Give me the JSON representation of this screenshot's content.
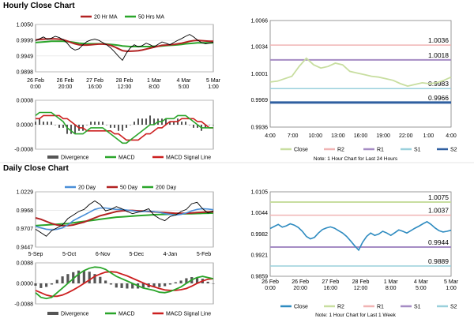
{
  "sections": {
    "hourly_title": "Hourly Close Chart",
    "daily_title": "Daily Close Chart"
  },
  "colors": {
    "close": "#2e8bc0",
    "close_right": "#c8dea0",
    "ma_short": "#b22222",
    "ma_long": "#2aa52a",
    "ma_mid": "#4a8fd8",
    "divergence": "#555555",
    "macd": "#2aa52a",
    "macd_signal": "#cc1f1f",
    "r2": "#f0b4b4",
    "r1": "#a58cc4",
    "s1": "#9ad0dc",
    "s2": "#2f5fa0",
    "grid": "#d9d9d9"
  },
  "chart_data": [
    {
      "id": "hourly_price",
      "type": "line",
      "legend": [
        "20 Hr MA",
        "50 Hrs MA"
      ],
      "y_ticks": [
        "1.0050",
        "0.9999",
        "0.9949",
        "0.9898"
      ],
      "ylim": [
        0.9898,
        1.005
      ],
      "x_ticks": [
        "26 Feb\n0:00",
        "26 Feb\n20:00",
        "27 Feb\n16:00",
        "28 Feb\n12:00",
        "1 Mar\n8:00",
        "4 Mar\n5:00",
        "5 Mar\n1:00"
      ],
      "series": [
        {
          "name": "Close",
          "values": [
            0.9998,
            1.0004,
            1.001,
            1.0002,
            1.0006,
            1.0012,
            1.0008,
            1.0001,
            0.999,
            0.9975,
            0.9968,
            0.9972,
            0.9985,
            0.9995,
            1.0,
            1.0003,
            0.9999,
            0.9992,
            0.9985,
            0.9975,
            0.9962,
            0.9948,
            0.9935,
            0.9958,
            0.9975,
            0.9985,
            0.9978,
            0.9982,
            0.999,
            0.9985,
            0.9978,
            0.9986,
            0.9994,
            0.999,
            0.9985,
            0.9992,
            0.9999,
            1.0005,
            1.0012,
            1.0018,
            1.001,
            1.0,
            0.9992,
            0.9988,
            0.999,
            0.9993
          ]
        },
        {
          "name": "20 Hr MA",
          "values": [
            1.0,
            1.0002,
            1.0003,
            1.0004,
            1.0004,
            1.0004,
            1.0003,
            1.0001,
            0.9997,
            0.9992,
            0.9988,
            0.9985,
            0.9984,
            0.9984,
            0.9985,
            0.9986,
            0.9987,
            0.9987,
            0.9986,
            0.9983,
            0.9978,
            0.9972,
            0.9966,
            0.9964,
            0.9964,
            0.9965,
            0.9966,
            0.9968,
            0.9971,
            0.9974,
            0.9977,
            0.998,
            0.9983,
            0.9984,
            0.9985,
            0.9986,
            0.9988,
            0.999,
            0.9993,
            0.9996,
            0.9998,
            0.9999,
            0.9998,
            0.9997,
            0.9996,
            0.9996
          ]
        },
        {
          "name": "50 Hrs MA",
          "values": [
            0.9992,
            0.9993,
            0.9994,
            0.9995,
            0.9996,
            0.9996,
            0.9996,
            0.9996,
            0.9995,
            0.9994,
            0.9992,
            0.999,
            0.9989,
            0.9988,
            0.9988,
            0.9988,
            0.9988,
            0.9988,
            0.9987,
            0.9986,
            0.9985,
            0.9983,
            0.9981,
            0.998,
            0.9979,
            0.9979,
            0.9979,
            0.9979,
            0.9979,
            0.9979,
            0.998,
            0.998,
            0.9981,
            0.9982,
            0.9983,
            0.9984,
            0.9985,
            0.9986,
            0.9988,
            0.9989,
            0.999,
            0.9991,
            0.9991,
            0.9991,
            0.9991,
            0.9991
          ]
        }
      ]
    },
    {
      "id": "hourly_macd",
      "type": "line",
      "legend": [
        "Divergence",
        "MACD",
        "MACD Signal Line"
      ],
      "y_ticks": [
        "0.0008",
        "0.0000",
        "-0.0008"
      ],
      "ylim": [
        -0.0008,
        0.0008
      ],
      "series": [
        {
          "name": "MACD",
          "values": [
            0.0003,
            0.0004,
            0.0004,
            0.0004,
            0.0004,
            0.0003,
            0.0002,
            0.0001,
            -0.0001,
            -0.0002,
            -0.0003,
            -0.0003,
            -0.0003,
            -0.0002,
            -0.0001,
            -0.0001,
            -0.0001,
            -0.0001,
            -0.0002,
            -0.0003,
            -0.0004,
            -0.0005,
            -0.0006,
            -0.0006,
            -0.0005,
            -0.0004,
            -0.0003,
            -0.0002,
            -0.0001,
            0.0,
            0.0,
            0.0001,
            0.0001,
            0.0002,
            0.0002,
            0.0002,
            0.0003,
            0.0003,
            0.0003,
            0.0002,
            0.0001,
            0.0,
            -0.0001,
            -0.0001,
            -0.0001,
            -0.0001
          ]
        },
        {
          "name": "MACD Signal Line",
          "values": [
            0.0002,
            0.0002,
            0.0003,
            0.0003,
            0.0003,
            0.0003,
            0.0003,
            0.0002,
            0.0002,
            0.0001,
            0.0,
            -0.0001,
            -0.0001,
            -0.0002,
            -0.0002,
            -0.0002,
            -0.0002,
            -0.0002,
            -0.0002,
            -0.0002,
            -0.0003,
            -0.0003,
            -0.0004,
            -0.0005,
            -0.0005,
            -0.0005,
            -0.0005,
            -0.0004,
            -0.0003,
            -0.0003,
            -0.0002,
            -0.0001,
            -0.0001,
            0.0,
            0.0001,
            0.0001,
            0.0001,
            0.0002,
            0.0002,
            0.0002,
            0.0002,
            0.0001,
            0.0001,
            0.0,
            -0.0001,
            -0.0001
          ]
        },
        {
          "name": "Divergence",
          "values": [
            0.0001,
            0.0002,
            0.0001,
            0.0001,
            0.0001,
            0.0,
            -0.0001,
            -0.0001,
            -0.0003,
            -0.0003,
            -0.0003,
            -0.0002,
            -0.0002,
            0.0,
            0.0001,
            0.0001,
            0.0001,
            0.0001,
            0.0,
            -0.0001,
            -0.0001,
            -0.0002,
            -0.0002,
            -0.0001,
            0.0,
            0.0001,
            0.0002,
            0.0002,
            0.0002,
            0.0003,
            0.0002,
            0.0002,
            0.0002,
            0.0002,
            0.0001,
            0.0001,
            0.0002,
            0.0001,
            0.0001,
            0.0,
            -0.0001,
            -0.0001,
            -0.0002,
            -0.0001,
            0.0,
            0.0
          ]
        }
      ]
    },
    {
      "id": "hourly_pivot",
      "type": "line",
      "y_ticks": [
        "1.0066",
        "1.0034",
        "1.0001",
        "0.9969",
        "0.9936"
      ],
      "ylim": [
        0.9936,
        1.0066
      ],
      "x_ticks": [
        "4:00",
        "7:00",
        "10:00",
        "13:00",
        "16:00",
        "19:00",
        "22:00",
        "1:00",
        "4:00"
      ],
      "legend": [
        "Close",
        "R2",
        "R1",
        "S1",
        "S2"
      ],
      "levels": [
        {
          "name": "R2",
          "value": 1.0036,
          "label": "1.0036"
        },
        {
          "name": "R1",
          "value": 1.0018,
          "label": "1.0018"
        },
        {
          "name": "S1",
          "value": 0.9983,
          "label": "0.9983"
        },
        {
          "name": "S2",
          "value": 0.9966,
          "label": "0.9966"
        }
      ],
      "series": [
        {
          "name": "Close",
          "values": [
            0.9991,
            0.9992,
            0.9995,
            0.9998,
            1.001,
            1.002,
            1.0012,
            1.0008,
            1.001,
            1.0014,
            1.0012,
            1.0004,
            1.0002,
            1.0,
            0.9998,
            0.9997,
            0.9995,
            0.9993,
            0.9989,
            0.9986,
            0.9988,
            0.999,
            0.9989,
            0.999,
            0.9993,
            0.9997
          ]
        }
      ],
      "note": "Note: 1 Hour Chart for Last 24 Hours"
    },
    {
      "id": "daily_price",
      "type": "line",
      "legend": [
        "20 Day",
        "50 Day",
        "200 Day"
      ],
      "y_ticks": [
        "1.0229",
        "0.9968",
        "0.9707",
        "0.9447"
      ],
      "ylim": [
        0.9447,
        1.0229
      ],
      "x_ticks": [
        "5-Sep",
        "5-Oct",
        "6-Nov",
        "5-Dec",
        "4-Jan",
        "5-Feb"
      ],
      "series": [
        {
          "name": "Close",
          "values": [
            0.97,
            0.965,
            0.96,
            0.968,
            0.972,
            0.976,
            0.985,
            0.99,
            0.995,
            0.998,
            1.005,
            1.01,
            1.005,
            0.996,
            0.998,
            1.002,
            0.999,
            0.995,
            0.992,
            0.994,
            0.996,
            0.999,
            0.99,
            0.985,
            0.982,
            0.988,
            0.99,
            0.995,
            0.998,
            1.006,
            1.008,
            0.999,
            0.993,
            0.996
          ]
        },
        {
          "name": "20 Day",
          "values": [
            0.974,
            0.972,
            0.97,
            0.969,
            0.97,
            0.972,
            0.976,
            0.982,
            0.986,
            0.99,
            0.994,
            0.998,
            1.0,
            1.0,
            0.999,
            0.998,
            0.998,
            0.997,
            0.996,
            0.995,
            0.995,
            0.9955,
            0.995,
            0.994,
            0.992,
            0.991,
            0.99,
            0.991,
            0.993,
            0.996,
            0.998,
            0.999,
            0.9985,
            0.9975
          ]
        },
        {
          "name": "50 Day",
          "values": [
            0.986,
            0.984,
            0.981,
            0.978,
            0.976,
            0.975,
            0.975,
            0.976,
            0.978,
            0.98,
            0.983,
            0.986,
            0.989,
            0.991,
            0.993,
            0.995,
            0.996,
            0.9965,
            0.9965,
            0.996,
            0.9955,
            0.995,
            0.9945,
            0.994,
            0.9935,
            0.993,
            0.9925,
            0.9925,
            0.9925,
            0.993,
            0.9935,
            0.994,
            0.9945,
            0.9945
          ]
        },
        {
          "name": "200 Day",
          "values": [
            0.975,
            0.9755,
            0.976,
            0.9765,
            0.977,
            0.9775,
            0.978,
            0.979,
            0.98,
            0.981,
            0.982,
            0.983,
            0.984,
            0.985,
            0.986,
            0.987,
            0.9875,
            0.988,
            0.9885,
            0.989,
            0.9895,
            0.99,
            0.9905,
            0.9908,
            0.991,
            0.9912,
            0.9914,
            0.9916,
            0.9918,
            0.992,
            0.9922,
            0.9924,
            0.9926,
            0.9928
          ]
        }
      ]
    },
    {
      "id": "daily_macd",
      "type": "line",
      "legend": [
        "Divergence",
        "MACD",
        "MACD Signal Line"
      ],
      "y_ticks": [
        "0.0088",
        "0.0000",
        "-0.0088"
      ],
      "ylim": [
        -0.0088,
        0.0088
      ],
      "series": [
        {
          "name": "MACD",
          "values": [
            -0.004,
            -0.006,
            -0.0065,
            -0.006,
            -0.004,
            -0.002,
            0.0,
            0.002,
            0.004,
            0.0055,
            0.0065,
            0.007,
            0.0068,
            0.006,
            0.0045,
            0.003,
            0.002,
            0.001,
            0.0,
            -0.001,
            -0.002,
            -0.0025,
            -0.003,
            -0.0038,
            -0.004,
            -0.0035,
            -0.0025,
            -0.0015,
            0.0,
            0.0015,
            0.0025,
            0.003,
            0.0025,
            0.002
          ]
        },
        {
          "name": "MACD Signal Line",
          "values": [
            -0.003,
            -0.004,
            -0.005,
            -0.0055,
            -0.0055,
            -0.005,
            -0.004,
            -0.0028,
            -0.0015,
            0.0,
            0.0015,
            0.003,
            0.004,
            0.0048,
            0.005,
            0.0048,
            0.004,
            0.0032,
            0.0022,
            0.0012,
            0.0002,
            -0.0008,
            -0.0015,
            -0.0022,
            -0.0028,
            -0.003,
            -0.003,
            -0.0027,
            -0.0022,
            -0.0012,
            0.0,
            0.001,
            0.0018,
            0.002
          ]
        },
        {
          "name": "Divergence",
          "values": [
            -0.001,
            -0.002,
            -0.0015,
            -0.0005,
            0.0015,
            0.003,
            0.004,
            0.0048,
            0.0055,
            0.0055,
            0.005,
            0.004,
            0.0028,
            0.0012,
            -0.0005,
            -0.0018,
            -0.002,
            -0.0022,
            -0.0022,
            -0.0022,
            -0.0022,
            -0.0017,
            -0.0015,
            -0.0016,
            -0.0012,
            -0.0005,
            0.0005,
            0.0012,
            0.0022,
            0.0027,
            0.0025,
            0.002,
            0.0007,
            0.0
          ]
        }
      ]
    },
    {
      "id": "daily_pivot",
      "type": "line",
      "y_ticks": [
        "1.0105",
        "1.0044",
        "0.9982",
        "0.9921",
        "0.9859"
      ],
      "ylim": [
        0.9859,
        1.0105
      ],
      "x_ticks": [
        "26 Feb\n0:00",
        "26 Feb\n20:00",
        "27 Feb\n16:00",
        "28 Feb\n12:00",
        "1 Mar\n8:00",
        "4 Mar\n5:00",
        "5 Mar\n1:00"
      ],
      "legend": [
        "Close",
        "R2",
        "R1",
        "S1",
        "S2"
      ],
      "levels": [
        {
          "name": "R2",
          "value": 1.0075,
          "label": "1.0075"
        },
        {
          "name": "R1",
          "value": 1.0037,
          "label": "1.0037"
        },
        {
          "name": "S1",
          "value": 0.9944,
          "label": "0.9944"
        },
        {
          "name": "S2",
          "value": 0.9889,
          "label": "0.9889"
        }
      ],
      "series": [
        {
          "name": "Close",
          "values": [
            0.9998,
            1.0004,
            1.001,
            1.0002,
            1.0006,
            1.0012,
            1.0008,
            1.0001,
            0.999,
            0.9975,
            0.9968,
            0.9972,
            0.9985,
            0.9995,
            1.0,
            1.0003,
            0.9999,
            0.9992,
            0.9985,
            0.9975,
            0.9962,
            0.9948,
            0.9935,
            0.9958,
            0.9975,
            0.9985,
            0.9978,
            0.9982,
            0.999,
            0.9985,
            0.9978,
            0.9986,
            0.9994,
            0.999,
            0.9985,
            0.9992,
            0.9999,
            1.0005,
            1.0012,
            1.0018,
            1.001,
            1.0,
            0.9992,
            0.9988,
            0.999,
            0.9993
          ]
        }
      ],
      "note": "Note: 1 Hour Chart for Last 1 Week"
    }
  ]
}
